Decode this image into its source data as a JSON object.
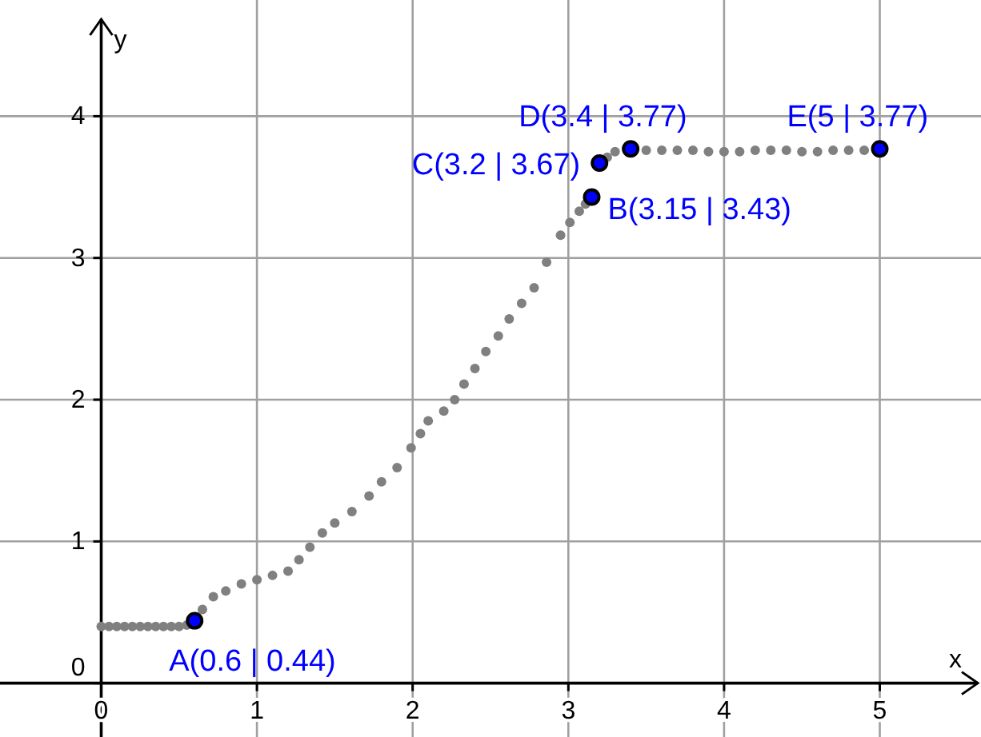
{
  "chart_data": {
    "type": "scatter",
    "xlabel": "x",
    "ylabel": "y",
    "xlim": [
      -0.65,
      5.65
    ],
    "ylim": [
      -0.38,
      4.82
    ],
    "xticks": [
      0,
      1,
      2,
      3,
      4,
      5
    ],
    "yticks": [
      0,
      1,
      2,
      3,
      4
    ],
    "grid": true,
    "marker": "circle",
    "series": [
      {
        "color": "#808080",
        "x": [
          0,
          0.05,
          0.1,
          0.15,
          0.2,
          0.25,
          0.3,
          0.35,
          0.4,
          0.45,
          0.5,
          0.55,
          0.65,
          0.72,
          0.8,
          0.9,
          1.0,
          1.1,
          1.2,
          1.27,
          1.34,
          1.42,
          1.5,
          1.61,
          1.72,
          1.8,
          1.9,
          1.99,
          2.05,
          2.1,
          2.2,
          2.27,
          2.33,
          2.4,
          2.47,
          2.55,
          2.62,
          2.7,
          2.78,
          2.86,
          2.95,
          3.01,
          3.07,
          3.11,
          3.25,
          3.3,
          3.5,
          3.6,
          3.7,
          3.8,
          3.9,
          4.0,
          4.1,
          4.2,
          4.3,
          4.4,
          4.5,
          4.6,
          4.7,
          4.8,
          4.9
        ],
        "values": [
          0.4,
          0.4,
          0.4,
          0.4,
          0.4,
          0.4,
          0.4,
          0.4,
          0.4,
          0.4,
          0.4,
          0.41,
          0.52,
          0.61,
          0.65,
          0.7,
          0.73,
          0.76,
          0.79,
          0.87,
          0.96,
          1.06,
          1.13,
          1.21,
          1.32,
          1.42,
          1.52,
          1.66,
          1.76,
          1.85,
          1.92,
          2.0,
          2.11,
          2.22,
          2.34,
          2.45,
          2.57,
          2.68,
          2.79,
          2.97,
          3.16,
          3.25,
          3.33,
          3.38,
          3.71,
          3.75,
          3.76,
          3.76,
          3.76,
          3.76,
          3.75,
          3.75,
          3.75,
          3.76,
          3.76,
          3.76,
          3.75,
          3.75,
          3.76,
          3.76,
          3.76
        ]
      },
      {
        "color": "#0000ff",
        "x": [
          0.6,
          3.15,
          3.2,
          3.4,
          5
        ],
        "values": [
          0.44,
          3.43,
          3.67,
          3.77,
          3.77
        ]
      }
    ],
    "annotations": [
      {
        "text": "A(0.6 | 0.44)",
        "x": 0.6,
        "y": 0.44
      },
      {
        "text": "B(3.15 | 3.43)",
        "x": 3.15,
        "y": 3.43
      },
      {
        "text": "C(3.2 | 3.67)",
        "x": 3.2,
        "y": 3.67
      },
      {
        "text": "D(3.4 | 3.77)",
        "x": 3.4,
        "y": 3.77
      },
      {
        "text": "E(5 | 3.77)",
        "x": 5,
        "y": 3.77
      }
    ]
  }
}
